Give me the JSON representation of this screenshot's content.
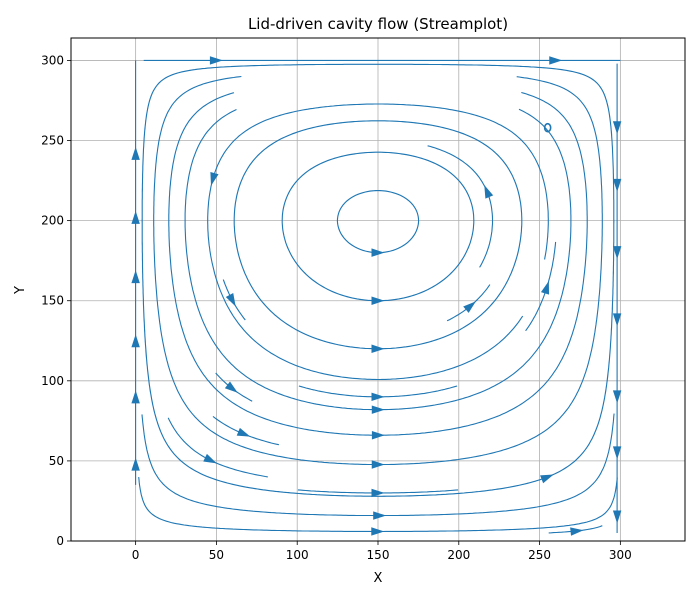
{
  "chart_data": {
    "type": "streamplot",
    "title": "Lid-driven cavity flow (Streamplot)",
    "xlabel": "X",
    "ylabel": "Y",
    "xlim": [
      -40,
      340
    ],
    "ylim": [
      0,
      314
    ],
    "xticks": [
      0,
      50,
      100,
      150,
      200,
      250,
      300
    ],
    "yticks": [
      0,
      50,
      100,
      150,
      200,
      250,
      300
    ],
    "grid": true,
    "color": "#1f77b4",
    "domain": {
      "x": [
        0,
        300
      ],
      "y": [
        0,
        300
      ]
    },
    "lid_velocity": 1,
    "vortex_center": [
      255,
      258
    ],
    "streamlines": [
      {
        "points": [
          [
            5,
            300
          ],
          [
            150,
            300
          ]
        ],
        "arrows": [
          [
            50,
            300,
            "e"
          ]
        ]
      },
      {
        "points": [
          [
            150,
            300
          ],
          [
            300,
            300
          ]
        ],
        "arrows": [
          [
            260,
            300,
            "e"
          ]
        ]
      },
      {
        "points": [
          [
            0,
            35
          ],
          [
            0,
            300
          ]
        ],
        "arrows": [
          [
            0,
            48,
            "n"
          ],
          [
            0,
            90,
            "n"
          ],
          [
            0,
            125,
            "n"
          ],
          [
            0,
            165,
            "n"
          ],
          [
            0,
            202,
            "n"
          ],
          [
            0,
            242,
            "n"
          ]
        ]
      },
      {
        "points": [
          [
            298,
            298
          ],
          [
            298,
            5
          ]
        ],
        "arrows": [
          [
            298,
            258,
            "s"
          ],
          [
            298,
            222,
            "s"
          ],
          [
            298,
            180,
            "s"
          ],
          [
            298,
            138,
            "s"
          ],
          [
            298,
            90,
            "s"
          ],
          [
            298,
            55,
            "s"
          ],
          [
            298,
            15,
            "s"
          ]
        ]
      }
    ]
  }
}
